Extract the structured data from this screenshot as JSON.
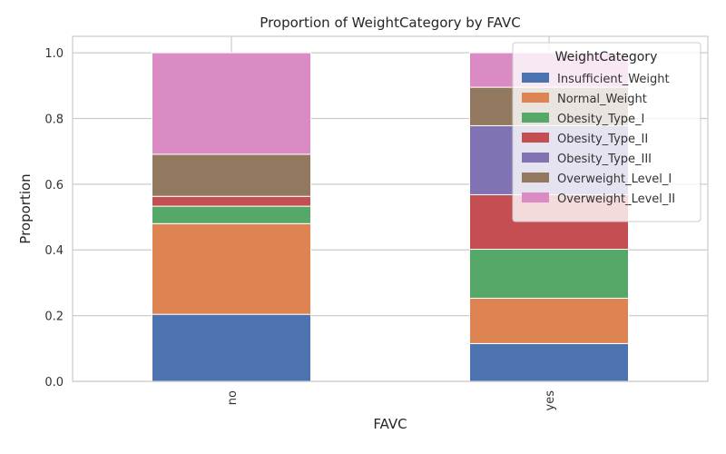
{
  "chart_data": {
    "type": "bar",
    "stacked": true,
    "title": "Proportion of WeightCategory by FAVC",
    "xlabel": "FAVC",
    "ylabel": "Proportion",
    "categories": [
      "no",
      "yes"
    ],
    "ylim": [
      0,
      1.05
    ],
    "yticks": [
      0.0,
      0.2,
      0.4,
      0.6,
      0.8,
      1.0
    ],
    "grid": true,
    "legend": {
      "title": "WeightCategory",
      "placement": "top-right"
    },
    "series": [
      {
        "name": "Insufficient_Weight",
        "color": "#4c72b0",
        "values": [
          0.204,
          0.115
        ]
      },
      {
        "name": "Normal_Weight",
        "color": "#dd8452",
        "values": [
          0.276,
          0.138
        ]
      },
      {
        "name": "Obesity_Type_I",
        "color": "#55a868",
        "values": [
          0.053,
          0.149
        ]
      },
      {
        "name": "Obesity_Type_II",
        "color": "#c44e52",
        "values": [
          0.03,
          0.166
        ]
      },
      {
        "name": "Obesity_Type_III",
        "color": "#8172b3",
        "values": [
          0.0,
          0.21
        ]
      },
      {
        "name": "Overweight_Level_I",
        "color": "#937860",
        "values": [
          0.128,
          0.117
        ]
      },
      {
        "name": "Overweight_Level_II",
        "color": "#da8bc3",
        "values": [
          0.309,
          0.105
        ]
      }
    ]
  }
}
